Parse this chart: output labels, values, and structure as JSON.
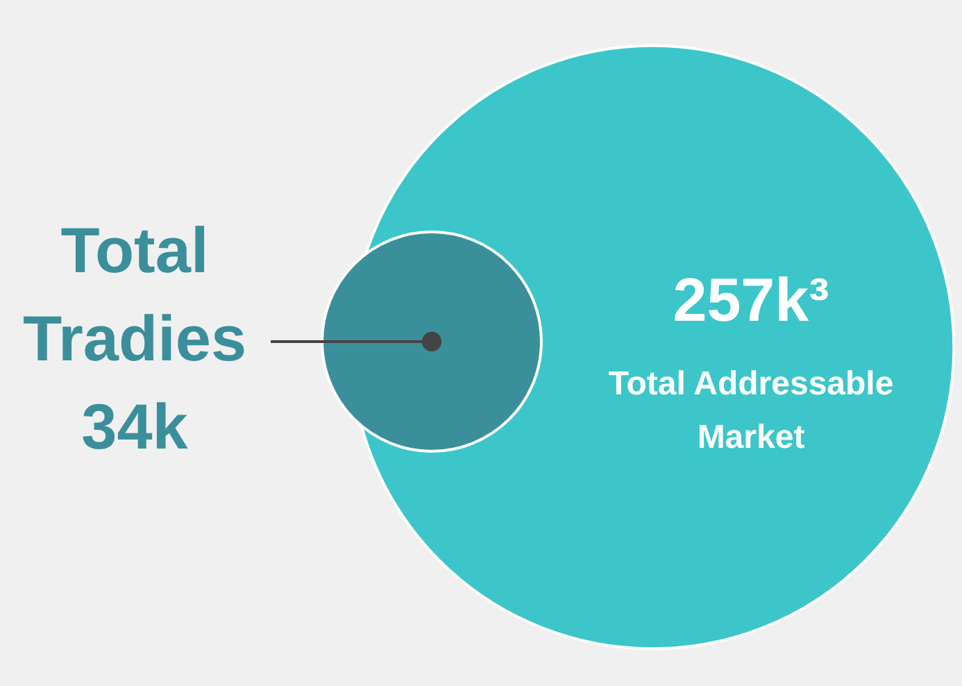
{
  "chart_data": {
    "type": "other",
    "categories": [
      "Total Tradies",
      "Total Addressable Market"
    ],
    "values": [
      34,
      257
    ],
    "value_labels": [
      "34k",
      "257k³"
    ],
    "colors": [
      "#3b8f9b",
      "#3cc6c9"
    ]
  }
}
